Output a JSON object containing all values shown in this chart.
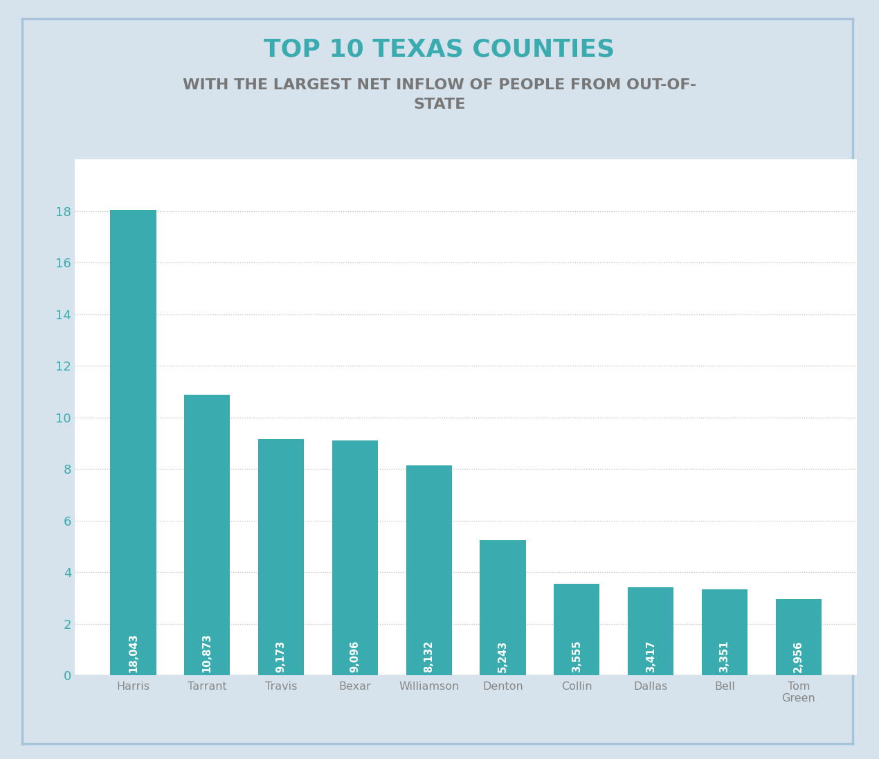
{
  "title1": "TOP 10 TEXAS COUNTIES",
  "title2": "WITH THE LARGEST NET INFLOW OF PEOPLE FROM OUT-OF-\nSTATE",
  "categories": [
    "Harris",
    "Tarrant",
    "Travis",
    "Bexar",
    "Williamson",
    "Denton",
    "Collin",
    "Dallas",
    "Bell",
    "Tom\nGreen"
  ],
  "values": [
    18043,
    10873,
    9173,
    9096,
    8132,
    5243,
    3555,
    3417,
    3351,
    2956
  ],
  "labels": [
    "18,043",
    "10,873",
    "9,173",
    "9,096",
    "8,132",
    "5,243",
    "3,555",
    "3,417",
    "3,351",
    "2,956"
  ],
  "bar_color": "#3aacb0",
  "title1_color": "#3aacb0",
  "title2_color": "#777777",
  "ytick_color": "#3aacb0",
  "xtick_color": "#888888",
  "background_outer": "#d6e3ec",
  "background_inner": "#ffffff",
  "border_color": "#a8c4d8",
  "grid_color": "#bbbbbb",
  "label_text_color": "#ffffff",
  "ylim": [
    0,
    20
  ],
  "yticks": [
    0,
    2,
    4,
    6,
    8,
    10,
    12,
    14,
    16,
    18
  ],
  "scale_divisor": 1000
}
